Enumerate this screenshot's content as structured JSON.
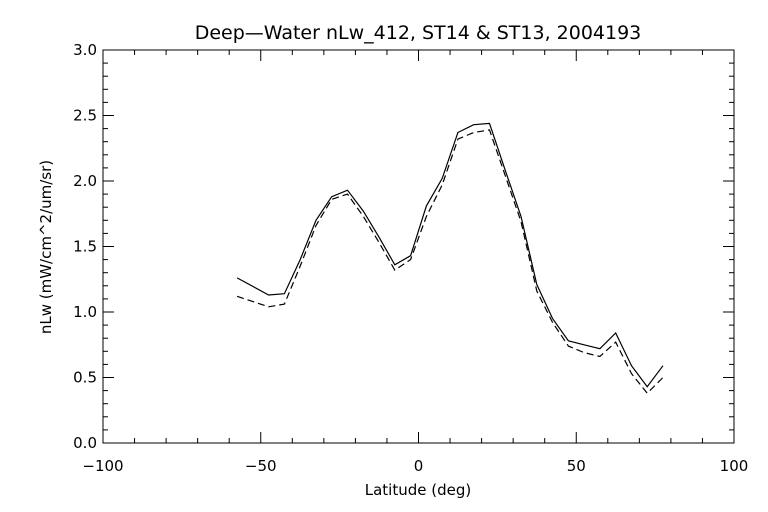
{
  "chart_data": {
    "type": "line",
    "title": "Deep—Water nLw_412, ST14 & ST13, 2004193",
    "xlabel": "Latitude (deg)",
    "ylabel": "nLw (mW/cm^2/um/sr)",
    "xlim": [
      -100,
      100
    ],
    "ylim": [
      0.0,
      3.0
    ],
    "xticks": [
      -100,
      -50,
      0,
      50,
      100
    ],
    "xtick_labels": [
      "−100",
      "−50",
      "0",
      "50",
      "100"
    ],
    "yticks": [
      0.0,
      0.5,
      1.0,
      1.5,
      2.0,
      2.5,
      3.0
    ],
    "ytick_labels": [
      "0.0",
      "0.5",
      "1.0",
      "1.5",
      "2.0",
      "2.5",
      "3.0"
    ],
    "grid": false,
    "series": [
      {
        "style": "solid",
        "x": [
          -57.5,
          -47.5,
          -42.5,
          -37.5,
          -32.5,
          -27.5,
          -22.5,
          -17.5,
          -12.5,
          -7.5,
          -2.5,
          2.5,
          7.5,
          12.5,
          17.5,
          22.5,
          27.5,
          32.5,
          37.5,
          42.5,
          47.5,
          52.5,
          57.5,
          62.5,
          67.5,
          72.5,
          77.5
        ],
        "y": [
          1.26,
          1.13,
          1.14,
          1.4,
          1.7,
          1.88,
          1.93,
          1.77,
          1.57,
          1.36,
          1.43,
          1.81,
          2.02,
          2.37,
          2.43,
          2.44,
          2.08,
          1.73,
          1.21,
          0.95,
          0.78,
          0.75,
          0.72,
          0.84,
          0.59,
          0.43,
          0.59
        ]
      },
      {
        "style": "dashed",
        "x": [
          -57.5,
          -47.5,
          -42.5,
          -37.5,
          -32.5,
          -27.5,
          -22.5,
          -17.5,
          -12.5,
          -7.5,
          -2.5,
          2.5,
          7.5,
          12.5,
          17.5,
          22.5,
          27.5,
          32.5,
          37.5,
          42.5,
          47.5,
          52.5,
          57.5,
          62.5,
          67.5,
          72.5,
          77.5
        ],
        "y": [
          1.12,
          1.04,
          1.06,
          1.35,
          1.66,
          1.86,
          1.9,
          1.73,
          1.53,
          1.32,
          1.4,
          1.73,
          1.97,
          2.32,
          2.37,
          2.39,
          2.04,
          1.69,
          1.16,
          0.92,
          0.74,
          0.69,
          0.66,
          0.77,
          0.53,
          0.38,
          0.5
        ]
      }
    ]
  }
}
